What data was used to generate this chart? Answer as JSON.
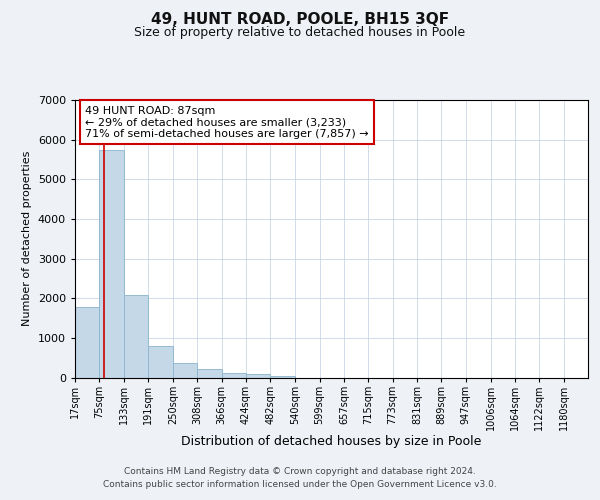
{
  "title": "49, HUNT ROAD, POOLE, BH15 3QF",
  "subtitle": "Size of property relative to detached houses in Poole",
  "xlabel": "Distribution of detached houses by size in Poole",
  "ylabel": "Number of detached properties",
  "bar_labels": [
    "17sqm",
    "75sqm",
    "133sqm",
    "191sqm",
    "250sqm",
    "308sqm",
    "366sqm",
    "424sqm",
    "482sqm",
    "540sqm",
    "599sqm",
    "657sqm",
    "715sqm",
    "773sqm",
    "831sqm",
    "889sqm",
    "947sqm",
    "1006sqm",
    "1064sqm",
    "1122sqm",
    "1180sqm"
  ],
  "bar_heights": [
    1780,
    5750,
    2070,
    800,
    360,
    220,
    120,
    80,
    30,
    0,
    0,
    0,
    0,
    0,
    0,
    0,
    0,
    0,
    0,
    0,
    0
  ],
  "bar_color": "#c5d8e8",
  "bar_edge_color": "#8ab4cc",
  "property_line_x": 87,
  "bin_edges": [
    17,
    75,
    133,
    191,
    250,
    308,
    366,
    424,
    482,
    540,
    599,
    657,
    715,
    773,
    831,
    889,
    947,
    1006,
    1064,
    1122,
    1180
  ],
  "annotation_text": "49 HUNT ROAD: 87sqm\n← 29% of detached houses are smaller (3,233)\n71% of semi-detached houses are larger (7,857) →",
  "annotation_box_color": "#ffffff",
  "annotation_box_edge_color": "#cc0000",
  "vline_color": "#cc0000",
  "ylim": [
    0,
    7000
  ],
  "background_color": "#eef2f7",
  "plot_background": "#ffffff",
  "footer_line1": "Contains HM Land Registry data © Crown copyright and database right 2024.",
  "footer_line2": "Contains public sector information licensed under the Open Government Licence v3.0.",
  "grid_color": "#c0cfe0",
  "title_fontsize": 11,
  "subtitle_fontsize": 9,
  "xlabel_fontsize": 9,
  "ylabel_fontsize": 8,
  "tick_fontsize": 7,
  "footer_fontsize": 6.5,
  "annotation_fontsize": 8
}
